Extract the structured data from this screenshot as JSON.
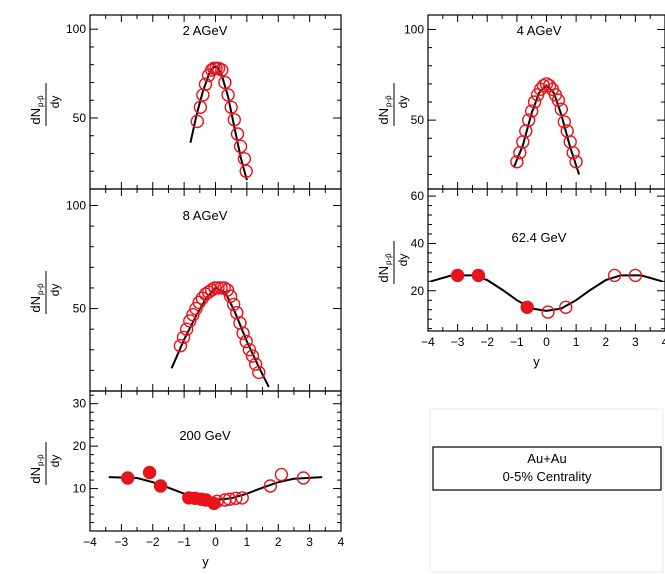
{
  "legend": {
    "line1": "Au+Au",
    "line2": "0-5% Centrality"
  },
  "common": {
    "ylabel_main": "dN",
    "ylabel_sub": "p-p̄",
    "ylabel_den": "dy",
    "xlabel": "y",
    "x_ticks": [
      "−4",
      "−3",
      "−2",
      "−1",
      "0",
      "1",
      "2",
      "3",
      "4"
    ],
    "open_marker_color": "#e8141b",
    "filled_marker_color": "#e8141b",
    "curve_color": "#000000"
  },
  "chart_data": [
    {
      "type": "scatter",
      "title": "2 AGeV",
      "xlim": [
        -4,
        4
      ],
      "ylim": [
        10,
        108
      ],
      "y_ticks": [
        50,
        100
      ],
      "series": [
        {
          "marker": "open",
          "x": [
            -0.58,
            -0.48,
            -0.4,
            -0.32,
            -0.22,
            -0.12,
            -0.05,
            0.02,
            0.1,
            0.2,
            0.3,
            0.4,
            0.5,
            0.6,
            0.7,
            0.8,
            0.92,
            0.98
          ],
          "y": [
            48,
            56,
            63,
            69,
            74,
            77,
            78,
            78,
            78,
            77,
            70,
            63,
            56,
            49,
            41,
            34,
            27,
            20
          ]
        }
      ],
      "curve": {
        "x": [
          -0.8,
          -0.6,
          -0.4,
          -0.2,
          -0.1,
          0,
          0.1,
          0.2,
          0.4,
          0.6,
          0.8,
          1.0
        ],
        "y": [
          36,
          52,
          65,
          75,
          78,
          79,
          78,
          74,
          62,
          45,
          28,
          15
        ]
      }
    },
    {
      "type": "scatter",
      "title": "8 AGeV",
      "xlim": [
        -4,
        4
      ],
      "ylim": [
        10,
        108
      ],
      "y_ticks": [
        50,
        100
      ],
      "series": [
        {
          "marker": "open",
          "x": [
            -1.12,
            -1.02,
            -0.92,
            -0.82,
            -0.72,
            -0.62,
            -0.52,
            -0.42,
            -0.32,
            -0.22,
            -0.12,
            -0.02,
            0.08,
            0.18,
            0.28,
            0.38,
            0.48,
            0.58,
            0.68,
            0.78,
            0.88,
            0.98,
            1.08,
            1.18,
            1.28,
            1.38
          ],
          "y": [
            32,
            36,
            40,
            44,
            47,
            50,
            53,
            55,
            57,
            58,
            59,
            60,
            60,
            60,
            60,
            59,
            56,
            52,
            48,
            43,
            38,
            34,
            30,
            27,
            23,
            19
          ]
        }
      ],
      "curve": {
        "x": [
          -1.4,
          -1.0,
          -0.6,
          -0.3,
          0,
          0.3,
          0.6,
          1.0,
          1.4,
          1.7
        ],
        "y": [
          21,
          35,
          47,
          55,
          60,
          58,
          49,
          34,
          21,
          12
        ]
      }
    },
    {
      "type": "scatter",
      "title": "200 GeV",
      "xlim": [
        -4,
        4
      ],
      "ylim": [
        0,
        33
      ],
      "y_ticks": [
        10,
        20,
        30
      ],
      "series": [
        {
          "marker": "filled",
          "x": [
            -2.8,
            -2.1,
            -1.75,
            -0.85,
            -0.65,
            -0.45,
            -0.3,
            -0.05
          ],
          "y": [
            12.5,
            13.8,
            10.6,
            7.8,
            7.7,
            7.5,
            7.3,
            6.5
          ]
        },
        {
          "marker": "open",
          "x": [
            0.05,
            0.3,
            0.45,
            0.65,
            0.85,
            1.75,
            2.1,
            2.8
          ],
          "y": [
            7.0,
            7.3,
            7.5,
            7.7,
            7.8,
            10.6,
            13.3,
            12.5
          ]
        }
      ],
      "curve": {
        "x": [
          -3.4,
          -2.5,
          -2,
          -1.5,
          -1,
          -0.5,
          0,
          0.5,
          1,
          1.5,
          2,
          2.5,
          3.4
        ],
        "y": [
          12.7,
          12.5,
          11.5,
          10.2,
          8.8,
          7.7,
          7.3,
          7.7,
          8.8,
          10.2,
          11.5,
          12.3,
          12.7
        ]
      }
    },
    {
      "type": "scatter",
      "title": "4 AGeV",
      "xlim": [
        -4,
        4
      ],
      "ylim": [
        12,
        108
      ],
      "y_ticks": [
        50,
        100
      ],
      "series": [
        {
          "marker": "open",
          "x": [
            -1.0,
            -0.9,
            -0.8,
            -0.7,
            -0.6,
            -0.5,
            -0.4,
            -0.3,
            -0.2,
            -0.1,
            0,
            0.1,
            0.2,
            0.3,
            0.4,
            0.5,
            0.6,
            0.7,
            0.8,
            0.9,
            1.0
          ],
          "y": [
            27,
            32,
            38,
            44,
            50,
            55,
            60,
            64,
            67,
            69,
            70,
            69,
            67,
            64,
            61,
            56,
            49,
            44,
            38,
            32,
            27
          ]
        }
      ],
      "curve": {
        "x": [
          -1.1,
          -0.8,
          -0.5,
          -0.25,
          0,
          0.25,
          0.5,
          0.8,
          1.1
        ],
        "y": [
          24,
          36,
          54,
          65,
          69,
          65,
          53,
          35,
          20
        ]
      }
    },
    {
      "type": "scatter",
      "title": "62.4 GeV",
      "xlim": [
        -4,
        4
      ],
      "xlabel": "y",
      "ylim": [
        3,
        63
      ],
      "y_ticks": [
        20,
        40,
        60
      ],
      "series": [
        {
          "marker": "filled",
          "x": [
            -3.0,
            -2.3,
            -0.65
          ],
          "y": [
            26.5,
            26.5,
            13
          ]
        },
        {
          "marker": "open",
          "x": [
            0.05,
            0.65,
            2.3,
            3.0
          ],
          "y": [
            11,
            13,
            26.5,
            26.5
          ]
        }
      ],
      "curve": {
        "x": [
          -3.9,
          -3.2,
          -2.5,
          -2,
          -1.5,
          -1,
          -0.5,
          0,
          0.5,
          1,
          1.5,
          2,
          2.5,
          3.2,
          3.9
        ],
        "y": [
          24,
          26.5,
          26.5,
          24.5,
          20.5,
          16,
          12.5,
          11.5,
          12.5,
          16,
          20.5,
          24.5,
          26.5,
          26.5,
          24
        ]
      }
    }
  ]
}
